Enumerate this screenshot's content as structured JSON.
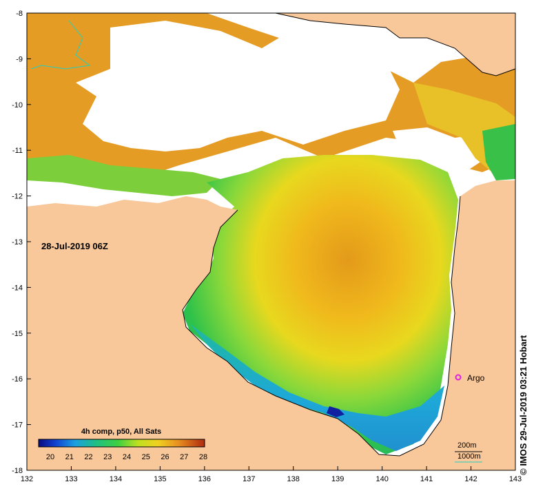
{
  "map": {
    "timestamp": "28-Jul-2019 06Z",
    "credit": "© IMOS 29-Jul-2019 03:21 Hobart",
    "argo_label": "Argo",
    "contours": {
      "c200": "200m",
      "c1000": "1000m"
    },
    "colorbar": {
      "title": "4h comp, p50, All Sats",
      "ticks": [
        "20",
        "21",
        "22",
        "23",
        "24",
        "25",
        "26",
        "27",
        "28"
      ]
    },
    "x_ticks": [
      "132",
      "133",
      "134",
      "135",
      "136",
      "137",
      "138",
      "139",
      "140",
      "141",
      "142",
      "143"
    ],
    "y_ticks": [
      "-8",
      "-9",
      "-10",
      "-11",
      "-12",
      "-13",
      "-14",
      "-15",
      "-16",
      "-17",
      "-18"
    ],
    "colors": {
      "land": "#f9c89a",
      "cloud": "#ffffff",
      "warm": "#d98a1a",
      "mid": "#f0c820",
      "cool": "#33c24a",
      "cold": "#1e90c8",
      "argo": "#e020e0",
      "contour_1000": "#20d0c0"
    }
  }
}
